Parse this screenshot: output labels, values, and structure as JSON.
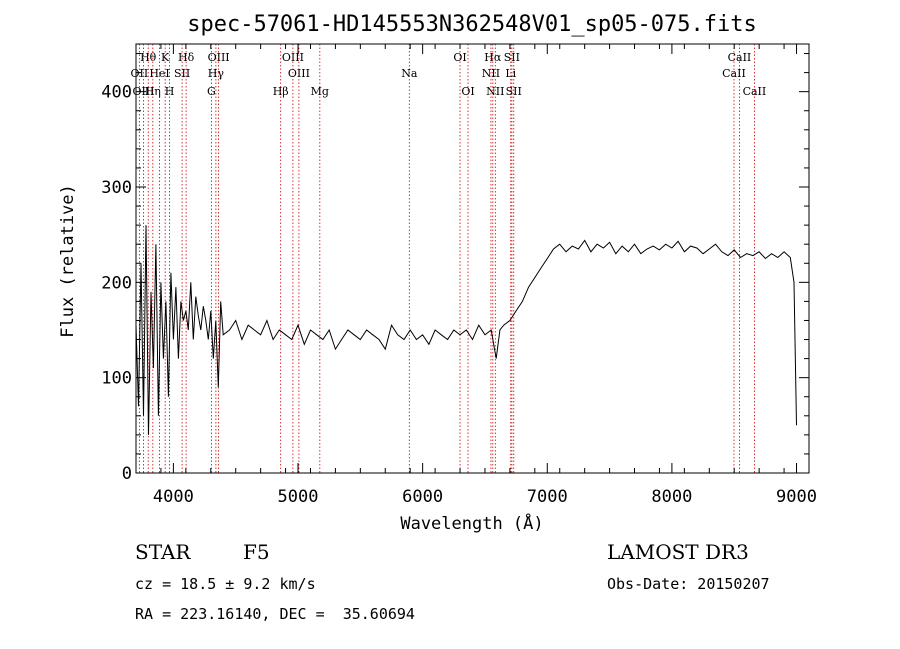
{
  "chart_data": {
    "type": "line",
    "title": "spec-57061-HD145553N362548V01_sp05-075.fits",
    "xlabel": "Wavelength (Å)",
    "ylabel": "Flux (relative)",
    "xlim": [
      3700,
      9100
    ],
    "ylim": [
      0,
      450
    ],
    "xticks": [
      "4000",
      "5000",
      "6000",
      "7000",
      "8000",
      "9000"
    ],
    "yticks": [
      "0",
      "100",
      "200",
      "300",
      "400"
    ],
    "series": [
      {
        "x": [
          3700,
          3720,
          3740,
          3760,
          3780,
          3800,
          3820,
          3840,
          3860,
          3880,
          3900,
          3920,
          3940,
          3960,
          3980,
          4000,
          4020,
          4040,
          4060,
          4080,
          4100,
          4120,
          4140,
          4160,
          4180,
          4200,
          4220,
          4240,
          4260,
          4280,
          4300,
          4320,
          4340,
          4360,
          4380,
          4400,
          4450,
          4500,
          4550,
          4600,
          4650,
          4700,
          4750,
          4800,
          4850,
          4900,
          4950,
          5000,
          5050,
          5100,
          5150,
          5200,
          5250,
          5300,
          5350,
          5400,
          5450,
          5500,
          5550,
          5600,
          5650,
          5700,
          5750,
          5800,
          5850,
          5900,
          5950,
          6000,
          6050,
          6100,
          6150,
          6200,
          6250,
          6300,
          6350,
          6400,
          6450,
          6500,
          6550,
          6570,
          6590,
          6620,
          6650,
          6700,
          6750,
          6800,
          6850,
          6900,
          6950,
          7000,
          7050,
          7100,
          7150,
          7200,
          7250,
          7300,
          7350,
          7400,
          7450,
          7500,
          7550,
          7600,
          7650,
          7700,
          7750,
          7800,
          7850,
          7900,
          7950,
          8000,
          8050,
          8100,
          8150,
          8200,
          8250,
          8300,
          8350,
          8400,
          8450,
          8500,
          8550,
          8600,
          8650,
          8700,
          8750,
          8800,
          8850,
          8900,
          8950,
          8980,
          9000
        ],
        "y": [
          155,
          70,
          220,
          60,
          260,
          40,
          190,
          110,
          240,
          60,
          200,
          120,
          180,
          80,
          210,
          140,
          195,
          120,
          180,
          160,
          170,
          150,
          200,
          140,
          185,
          165,
          150,
          175,
          160,
          140,
          170,
          120,
          160,
          90,
          180,
          145,
          150,
          160,
          140,
          155,
          150,
          145,
          160,
          140,
          150,
          145,
          140,
          155,
          135,
          150,
          145,
          140,
          150,
          130,
          140,
          150,
          145,
          140,
          150,
          145,
          140,
          130,
          155,
          145,
          140,
          150,
          140,
          145,
          135,
          150,
          145,
          140,
          150,
          145,
          150,
          140,
          155,
          145,
          150,
          135,
          120,
          150,
          155,
          160,
          170,
          180,
          195,
          205,
          215,
          225,
          235,
          240,
          232,
          238,
          235,
          244,
          232,
          240,
          236,
          242,
          230,
          238,
          232,
          240,
          230,
          235,
          238,
          234,
          240,
          236,
          243,
          232,
          238,
          236,
          230,
          235,
          240,
          232,
          228,
          234,
          226,
          230,
          228,
          232,
          225,
          230,
          226,
          232,
          226,
          200,
          50
        ]
      }
    ],
    "line_ids": [
      {
        "label": "Hθ",
        "x": 3798,
        "row": 1
      },
      {
        "label": "OII",
        "x": 3727,
        "row": 2
      },
      {
        "label": "OIII",
        "x": 3760,
        "row": 3
      },
      {
        "label": "K",
        "x": 3934,
        "row": 1
      },
      {
        "label": "HeI",
        "x": 3889,
        "row": 2
      },
      {
        "label": "Hη",
        "x": 3835,
        "row": 3
      },
      {
        "label": "Hδ",
        "x": 4102,
        "row": 1
      },
      {
        "label": "SII",
        "x": 4070,
        "row": 2
      },
      {
        "label": "H",
        "x": 3969,
        "row": 3
      },
      {
        "label": "OIII",
        "x": 4363,
        "row": 1
      },
      {
        "label": "Hγ",
        "x": 4341,
        "row": 2
      },
      {
        "label": "G",
        "x": 4305,
        "row": 3
      },
      {
        "label": "OIII",
        "x": 4959,
        "row": 1
      },
      {
        "label": "OIII",
        "x": 5007,
        "row": 2
      },
      {
        "label": "Hβ",
        "x": 4861,
        "row": 3
      },
      {
        "label": "Mg",
        "x": 5175,
        "row": 3
      },
      {
        "label": "Na",
        "x": 5893,
        "row": 2
      },
      {
        "label": "OI",
        "x": 6300,
        "row": 1
      },
      {
        "label": "OI",
        "x": 6364,
        "row": 3
      },
      {
        "label": "Hα",
        "x": 6563,
        "row": 1
      },
      {
        "label": "SII",
        "x": 6716,
        "row": 1
      },
      {
        "label": "NII",
        "x": 6548,
        "row": 2
      },
      {
        "label": "Li",
        "x": 6707,
        "row": 2
      },
      {
        "label": "NII",
        "x": 6583,
        "row": 3
      },
      {
        "label": "SII",
        "x": 6731,
        "row": 3
      },
      {
        "label": "CaII",
        "x": 8542,
        "row": 1
      },
      {
        "label": "CaII",
        "x": 8498,
        "row": 2
      },
      {
        "label": "CaII",
        "x": 8662,
        "row": 3
      }
    ],
    "grid": false,
    "line_color": "#000000",
    "marker_color": "#cc0000"
  },
  "info": {
    "object_class": "STAR",
    "subclass": "F5",
    "survey": "LAMOST DR3",
    "cz": "cz = 18.5 ± 9.2 km/s",
    "obs_date": "Obs-Date: 20150207",
    "radec": "RA = 223.16140, DEC =  35.60694"
  }
}
